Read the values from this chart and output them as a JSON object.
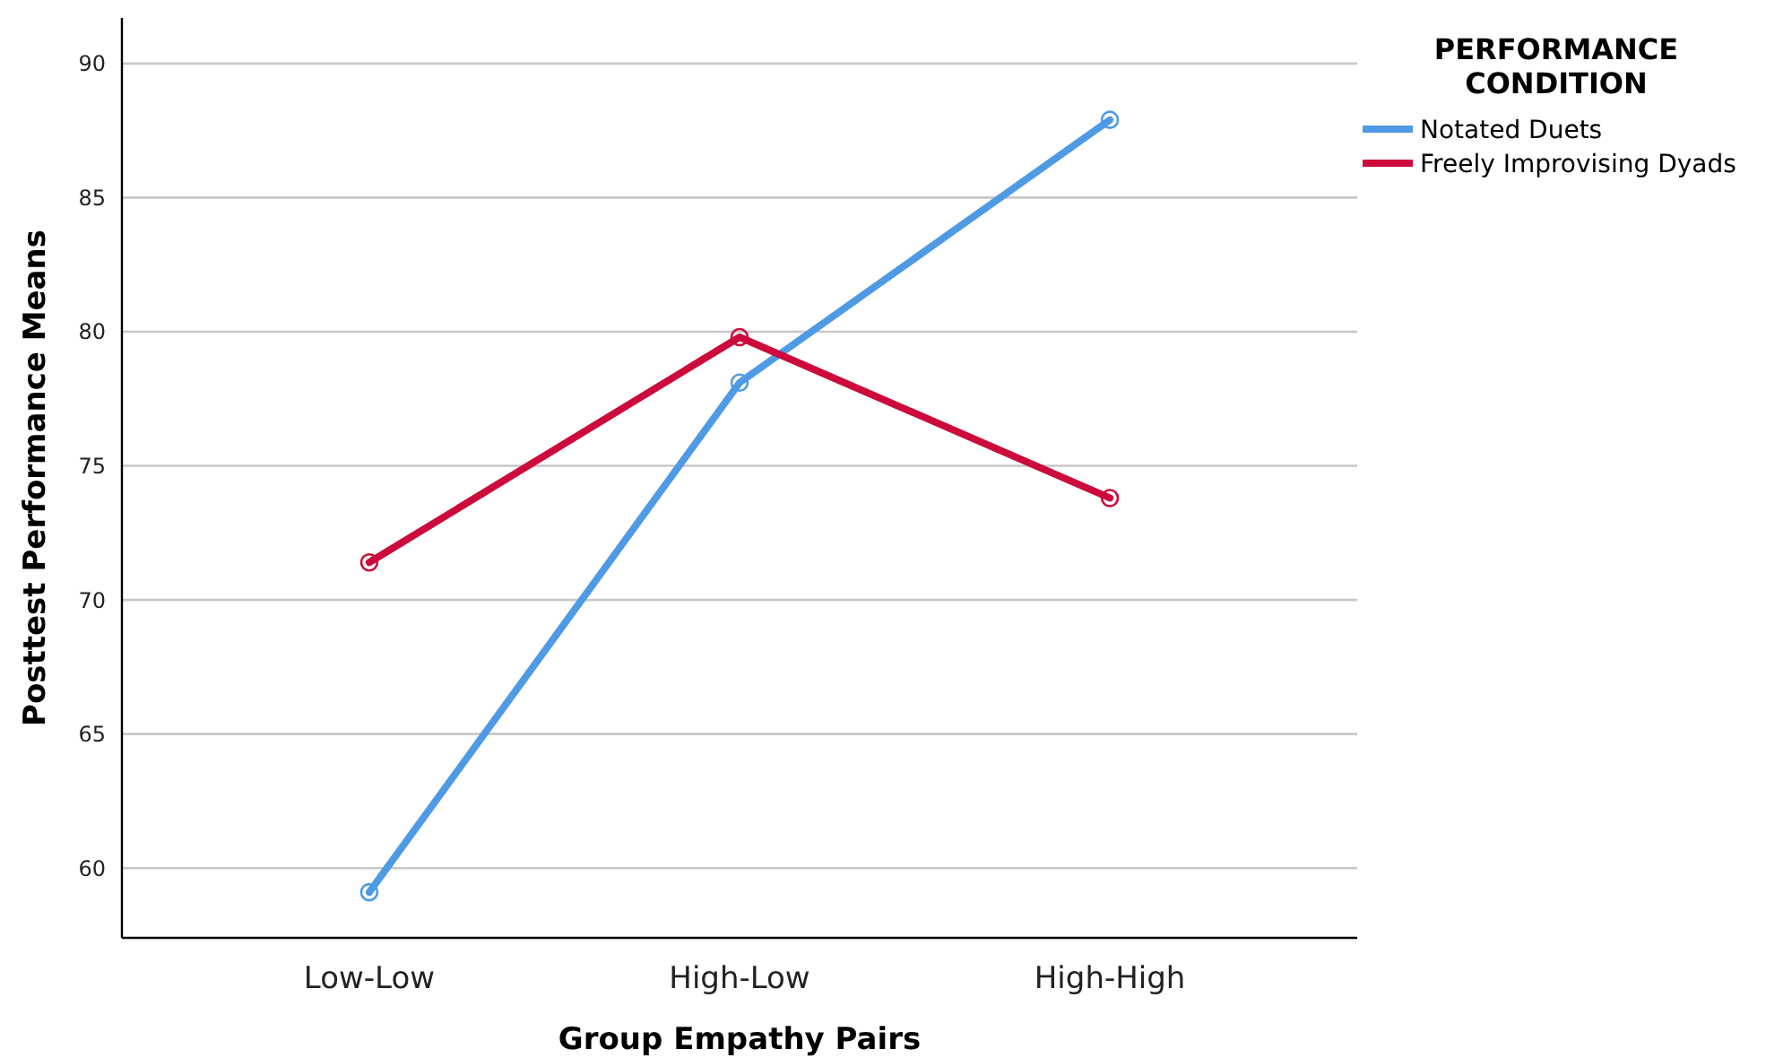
{
  "chart_data": {
    "type": "line",
    "xlabel": "Group Empathy Pairs",
    "ylabel": "Posttest Performance Means",
    "legend_title": "PERFORMANCE CONDITION",
    "categories": [
      "Low-Low",
      "High-Low",
      "High-High"
    ],
    "series": [
      {
        "name": "Notated Duets",
        "color": "#4f9ae4",
        "values": [
          59.1,
          78.1,
          87.9
        ]
      },
      {
        "name": "Freely Improvising Dyads",
        "color": "#cc0a3c",
        "values": [
          71.4,
          79.8,
          73.8
        ]
      }
    ],
    "ylim": [
      57.4,
      91.7
    ],
    "yticks": [
      60,
      65,
      70,
      75,
      80,
      85,
      90
    ],
    "grid": "y",
    "legend": "top right",
    "marker": "circle",
    "line_style": "solid"
  }
}
